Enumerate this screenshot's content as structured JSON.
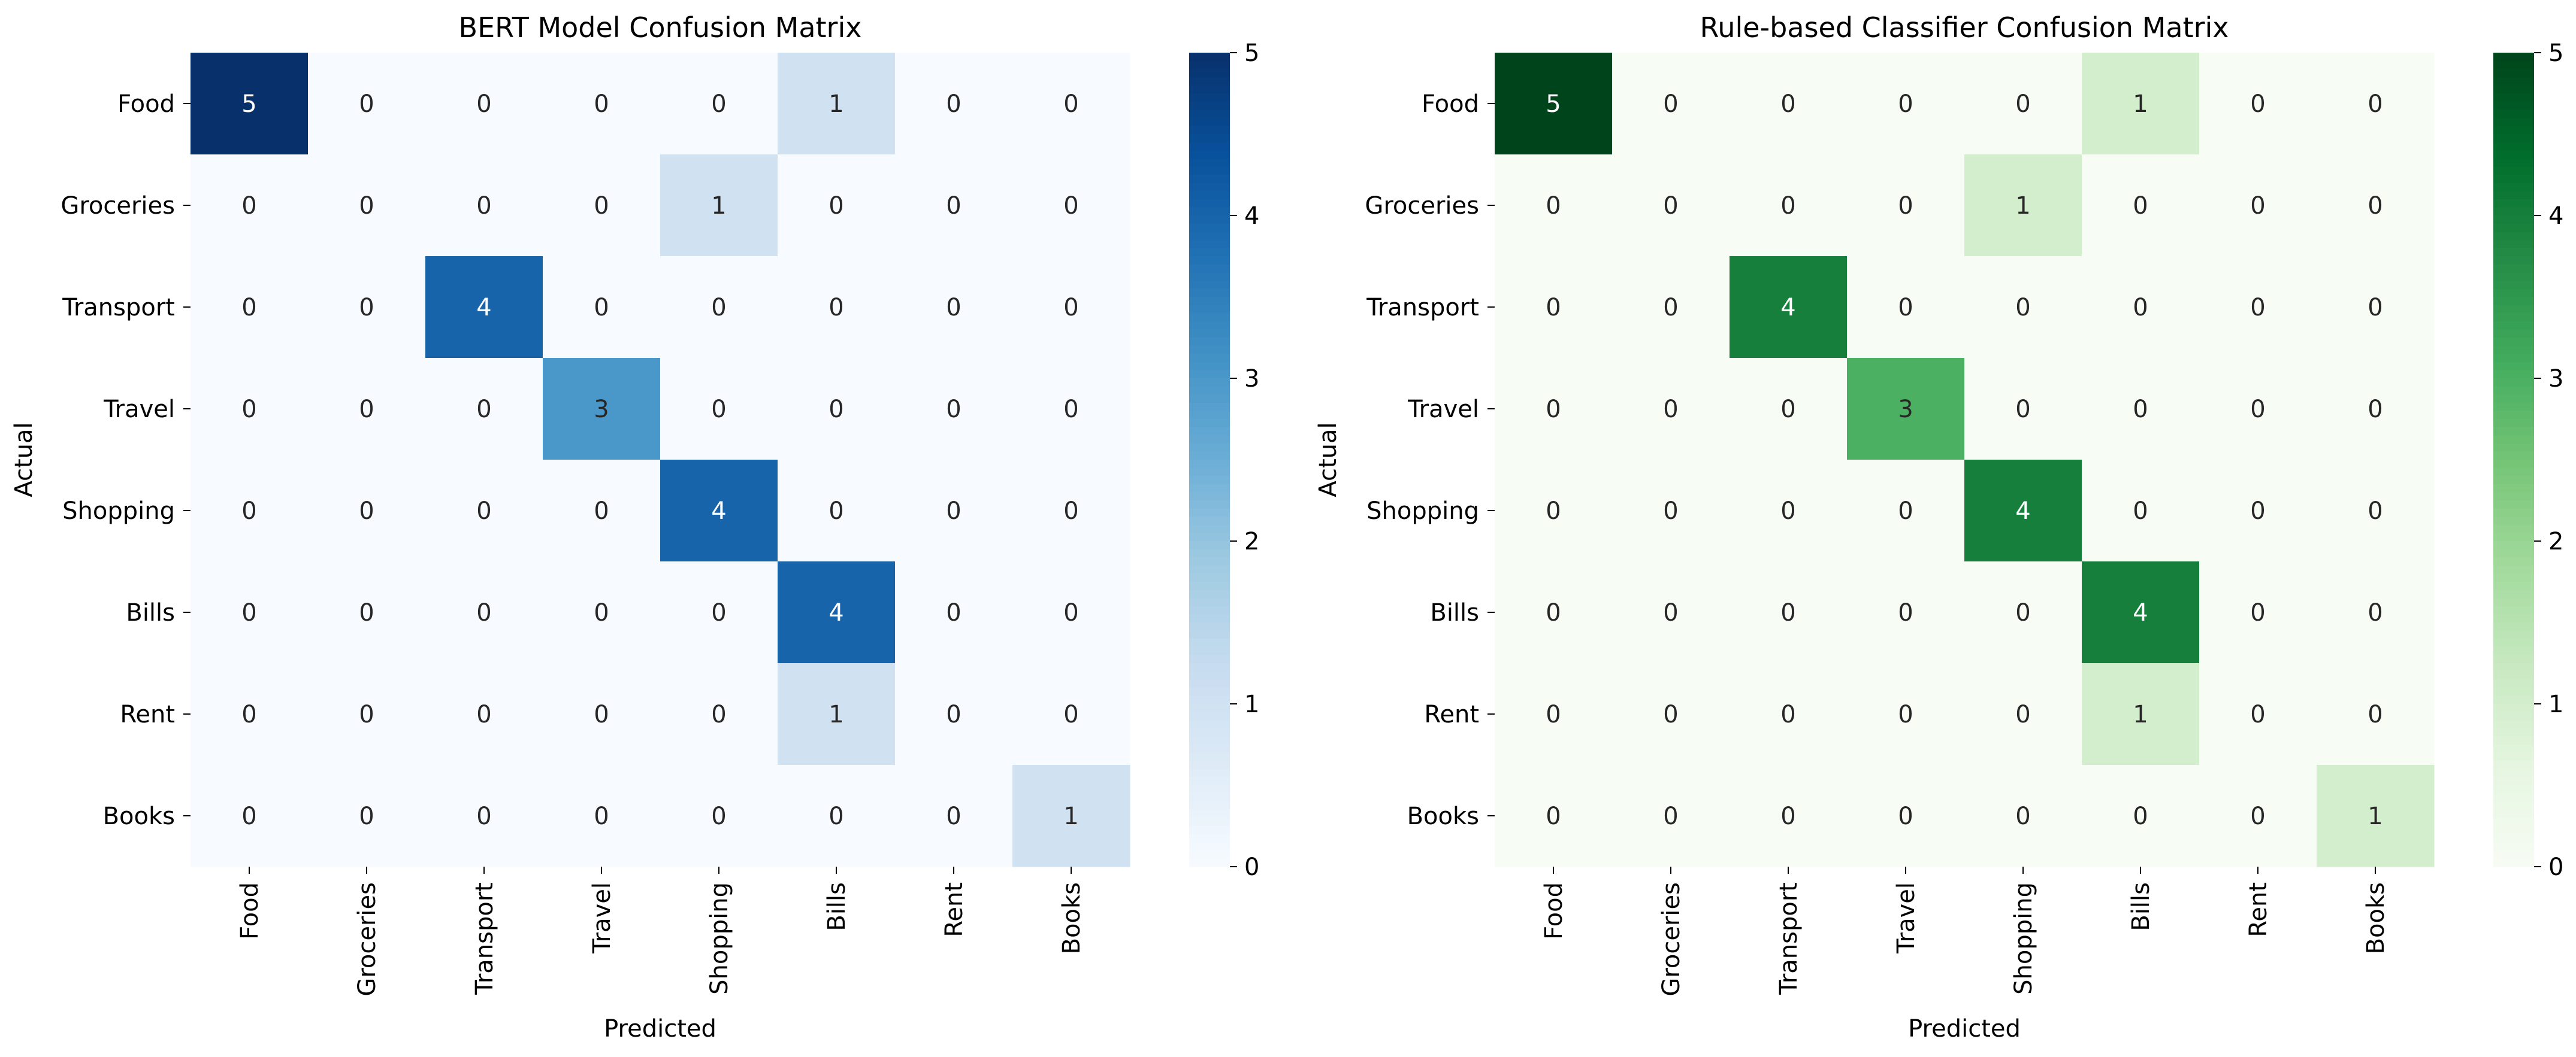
{
  "chart_data": [
    {
      "type": "heatmap",
      "title": "BERT Model Confusion Matrix",
      "xlabel": "Predicted",
      "ylabel": "Actual",
      "x_categories": [
        "Food",
        "Groceries",
        "Transport",
        "Travel",
        "Shopping",
        "Bills",
        "Rent",
        "Books"
      ],
      "y_categories": [
        "Food",
        "Groceries",
        "Transport",
        "Travel",
        "Shopping",
        "Bills",
        "Rent",
        "Books"
      ],
      "values": [
        [
          5,
          0,
          0,
          0,
          0,
          1,
          0,
          0
        ],
        [
          0,
          0,
          0,
          0,
          1,
          0,
          0,
          0
        ],
        [
          0,
          0,
          4,
          0,
          0,
          0,
          0,
          0
        ],
        [
          0,
          0,
          0,
          3,
          0,
          0,
          0,
          0
        ],
        [
          0,
          0,
          0,
          0,
          4,
          0,
          0,
          0
        ],
        [
          0,
          0,
          0,
          0,
          0,
          4,
          0,
          0
        ],
        [
          0,
          0,
          0,
          0,
          0,
          1,
          0,
          0
        ],
        [
          0,
          0,
          0,
          0,
          0,
          0,
          0,
          1
        ]
      ],
      "colorbar": {
        "min": 0,
        "max": 5,
        "ticks": [
          0,
          1,
          2,
          3,
          4,
          5
        ]
      },
      "colors": [
        "#f7fbff",
        "#deebf7",
        "#c6dbef",
        "#9ecae1",
        "#6baed6",
        "#4292c6",
        "#2171b5",
        "#08519c",
        "#08306b"
      ],
      "grid": false
    },
    {
      "type": "heatmap",
      "title": "Rule-based Classifier Confusion Matrix",
      "xlabel": "Predicted",
      "ylabel": "Actual",
      "x_categories": [
        "Food",
        "Groceries",
        "Transport",
        "Travel",
        "Shopping",
        "Bills",
        "Rent",
        "Books"
      ],
      "y_categories": [
        "Food",
        "Groceries",
        "Transport",
        "Travel",
        "Shopping",
        "Bills",
        "Rent",
        "Books"
      ],
      "values": [
        [
          5,
          0,
          0,
          0,
          0,
          1,
          0,
          0
        ],
        [
          0,
          0,
          0,
          0,
          1,
          0,
          0,
          0
        ],
        [
          0,
          0,
          4,
          0,
          0,
          0,
          0,
          0
        ],
        [
          0,
          0,
          0,
          3,
          0,
          0,
          0,
          0
        ],
        [
          0,
          0,
          0,
          0,
          4,
          0,
          0,
          0
        ],
        [
          0,
          0,
          0,
          0,
          0,
          4,
          0,
          0
        ],
        [
          0,
          0,
          0,
          0,
          0,
          1,
          0,
          0
        ],
        [
          0,
          0,
          0,
          0,
          0,
          0,
          0,
          1
        ]
      ],
      "colorbar": {
        "min": 0,
        "max": 5,
        "ticks": [
          0,
          1,
          2,
          3,
          4,
          5
        ]
      },
      "colors": [
        "#f7fcf5",
        "#e5f5e0",
        "#c7e9c0",
        "#a1d99b",
        "#74c476",
        "#41ab5d",
        "#238b45",
        "#006d2c",
        "#00441b"
      ],
      "grid": false
    }
  ]
}
